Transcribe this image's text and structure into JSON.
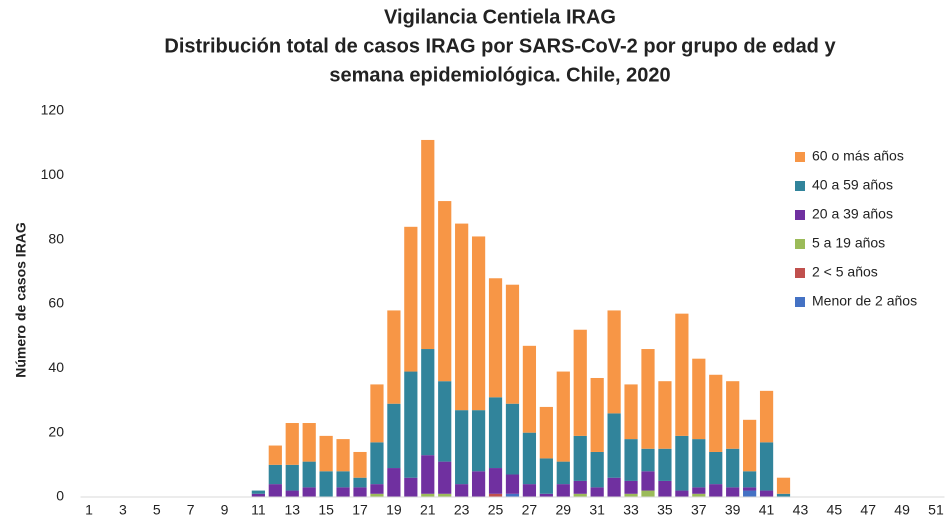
{
  "chart_data": {
    "type": "stacked_bar",
    "title": [
      "Vigilancia Centiela IRAG",
      "Distribución total  de casos IRAG  por SARS-CoV-2 por grupo de edad y",
      "semana epidemiológica.  Chile, 2020"
    ],
    "y_label": "Número de casos IRAG",
    "categories": [
      "1",
      null,
      "3",
      null,
      "5",
      null,
      "7",
      null,
      "9",
      null,
      "11",
      null,
      "13",
      null,
      "15",
      null,
      "17",
      null,
      "19",
      null,
      "21",
      null,
      "23",
      null,
      "25",
      null,
      "27",
      null,
      "29",
      null,
      "31",
      null,
      "33",
      null,
      "35",
      null,
      "37",
      null,
      "39",
      null,
      "41",
      null,
      "43",
      null,
      "45",
      null,
      "47",
      null,
      "49",
      null,
      "51"
    ],
    "ylim": [
      0,
      120
    ],
    "yticks": [
      0,
      20,
      40,
      60,
      80,
      100,
      120
    ],
    "grid": false,
    "legend": "right",
    "series": [
      {
        "name": "Menor de 2 años",
        "color": "#4472c4",
        "values": [
          0,
          0,
          0,
          0,
          0,
          0,
          0,
          0,
          0,
          0,
          0,
          0,
          0,
          0,
          0,
          0,
          0,
          0,
          0,
          0,
          0,
          0,
          0,
          0,
          0,
          1,
          0,
          0,
          0,
          0,
          0,
          0,
          0,
          0,
          0,
          0,
          0,
          0,
          0,
          2,
          0,
          0,
          0,
          0,
          0,
          0,
          0,
          0,
          0,
          0,
          0
        ]
      },
      {
        "name": "2 < 5 años",
        "color": "#c0504d",
        "values": [
          0,
          0,
          0,
          0,
          0,
          0,
          0,
          0,
          0,
          0,
          0,
          0,
          0,
          0,
          0,
          0,
          0,
          0,
          0,
          0,
          0,
          0,
          0,
          0,
          1,
          0,
          0,
          0,
          0,
          0,
          0,
          0,
          0,
          0,
          0,
          0,
          0,
          0,
          0,
          0,
          0,
          0,
          0,
          0,
          0,
          0,
          0,
          0,
          0,
          0,
          0
        ]
      },
      {
        "name": "5 a 19 años",
        "color": "#9bbb59",
        "values": [
          0,
          0,
          0,
          0,
          0,
          0,
          0,
          0,
          0,
          0,
          0,
          0,
          0,
          0,
          0,
          0,
          0,
          1,
          0,
          0,
          1,
          1,
          0,
          0,
          0,
          0,
          0,
          0,
          0,
          1,
          0,
          0,
          1,
          2,
          0,
          0,
          1,
          0,
          0,
          0,
          0,
          0,
          0,
          0,
          0,
          0,
          0,
          0,
          0,
          0,
          0
        ]
      },
      {
        "name": "20 a 39 años",
        "color": "#7030a0",
        "values": [
          0,
          0,
          0,
          0,
          0,
          0,
          0,
          0,
          0,
          0,
          1,
          4,
          2,
          3,
          0,
          3,
          3,
          3,
          9,
          6,
          12,
          10,
          4,
          8,
          8,
          6,
          4,
          1,
          4,
          4,
          3,
          6,
          4,
          6,
          5,
          2,
          2,
          4,
          3,
          1,
          2,
          0,
          0,
          0,
          0,
          0,
          0,
          0,
          0,
          0,
          0
        ]
      },
      {
        "name": "40 a 59 años",
        "color": "#31849b",
        "values": [
          0,
          0,
          0,
          0,
          0,
          0,
          0,
          0,
          0,
          0,
          1,
          6,
          8,
          8,
          8,
          5,
          3,
          13,
          20,
          33,
          33,
          25,
          23,
          19,
          22,
          22,
          16,
          11,
          7,
          14,
          11,
          20,
          13,
          7,
          10,
          17,
          15,
          10,
          12,
          5,
          15,
          1,
          0,
          0,
          0,
          0,
          0,
          0,
          0,
          0,
          0
        ]
      },
      {
        "name": "60 o más años",
        "color": "#f79646",
        "values": [
          0,
          0,
          0,
          0,
          0,
          0,
          0,
          0,
          0,
          0,
          0,
          6,
          13,
          12,
          11,
          10,
          8,
          18,
          29,
          45,
          65,
          56,
          58,
          54,
          37,
          37,
          27,
          16,
          28,
          33,
          23,
          32,
          17,
          31,
          21,
          38,
          25,
          24,
          21,
          16,
          16,
          5,
          0,
          0,
          0,
          0,
          0,
          0,
          0,
          0,
          0
        ]
      }
    ]
  }
}
